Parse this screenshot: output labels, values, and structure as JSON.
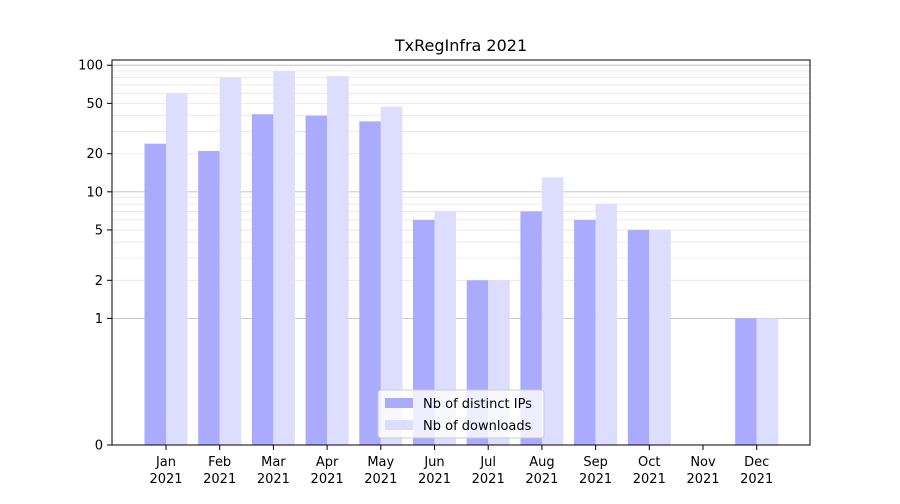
{
  "chart_data": {
    "type": "bar",
    "title": "TxRegInfra 2021",
    "xlabel": "",
    "ylabel": "",
    "yscale": "symlog",
    "ylim": [
      0,
      110
    ],
    "grid": "horizontal",
    "legend_position": "lower-center",
    "categories": [
      [
        "Jan",
        "2021"
      ],
      [
        "Feb",
        "2021"
      ],
      [
        "Mar",
        "2021"
      ],
      [
        "Apr",
        "2021"
      ],
      [
        "May",
        "2021"
      ],
      [
        "Jun",
        "2021"
      ],
      [
        "Jul",
        "2021"
      ],
      [
        "Aug",
        "2021"
      ],
      [
        "Sep",
        "2021"
      ],
      [
        "Oct",
        "2021"
      ],
      [
        "Nov",
        "2021"
      ],
      [
        "Dec",
        "2021"
      ]
    ],
    "yticks": [
      {
        "value": 0,
        "label": "0"
      },
      {
        "value": 1,
        "label": "1"
      },
      {
        "value": 2,
        "label": "2"
      },
      {
        "value": 5,
        "label": "5"
      },
      {
        "value": 10,
        "label": "10"
      },
      {
        "value": 20,
        "label": "20"
      },
      {
        "value": 50,
        "label": "50"
      },
      {
        "value": 100,
        "label": "100"
      }
    ],
    "series": [
      {
        "name": "Nb of distinct IPs",
        "color": "#aaaaff",
        "values": [
          24,
          21,
          41,
          40,
          36,
          6,
          2,
          7,
          6,
          5,
          0,
          1
        ]
      },
      {
        "name": "Nb of downloads",
        "color": "#ddddff",
        "values": [
          60,
          80,
          90,
          82,
          47,
          7,
          2,
          13,
          8,
          5,
          0,
          1
        ]
      }
    ]
  }
}
